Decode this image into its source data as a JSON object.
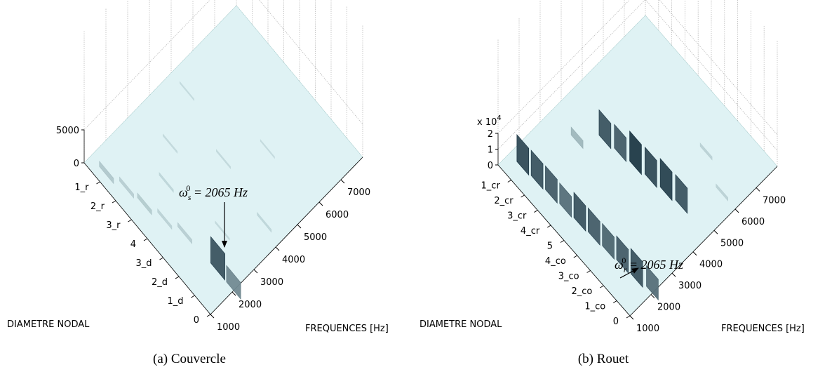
{
  "chart_data": [
    {
      "type": "waterfall3d",
      "caption": "(a) Couvercle",
      "xlabel": "FREQUENCES [Hz]",
      "ylabel": "DIAMETRE NODAL",
      "categories": [
        "0",
        "1_d",
        "2_d",
        "3_d",
        "4",
        "3_r",
        "2_r",
        "1_r",
        null
      ],
      "xlim": [
        1000,
        8000
      ],
      "xticks": [
        1000,
        2000,
        3000,
        4000,
        5000,
        6000,
        7000
      ],
      "zlim": [
        0,
        5000
      ],
      "zticks": [
        0,
        5000
      ],
      "annotation": {
        "symbol": "ω",
        "sub": "s",
        "sup": "0",
        "text": " = 2065 Hz"
      },
      "peak_diam": [
        7,
        6,
        5,
        7,
        4,
        6,
        3,
        5,
        2,
        4,
        3,
        1,
        1,
        0
      ],
      "peak_freq": [
        1300,
        1500,
        1600,
        5000,
        1800,
        3500,
        2000,
        2600,
        3000,
        4500,
        5800,
        4200,
        2065,
        2065
      ],
      "peak_height": [
        800,
        600,
        700,
        250,
        500,
        300,
        600,
        400,
        300,
        300,
        250,
        400,
        4000,
        2500
      ]
    },
    {
      "type": "waterfall3d",
      "caption": "(b) Rouet",
      "xlabel": "FREQUENCES [Hz]",
      "ylabel": "DIAMETRE NODAL",
      "categories": [
        "0",
        "1_co",
        "2_co",
        "3_co",
        "4_co",
        "5",
        "4_cr",
        "3_cr",
        "2_cr",
        "1_cr",
        null
      ],
      "xlim": [
        1000,
        8000
      ],
      "xticks": [
        1000,
        2000,
        3000,
        4000,
        5000,
        6000,
        7000
      ],
      "zlim": [
        0,
        2
      ],
      "zticks": [
        0,
        1,
        2
      ],
      "zmultiplier": {
        "base": "x 10",
        "exp": "4"
      },
      "annotation": {
        "symbol": "ω",
        "sub": "r",
        "sup": "0",
        "text": " = 2065 Hz"
      },
      "peak_diam": [
        9,
        8,
        8,
        7,
        7,
        6,
        6,
        5,
        5,
        4,
        4,
        3,
        3,
        2,
        2,
        1,
        1,
        0,
        3
      ],
      "peak_freq": [
        1550,
        1600,
        3500,
        1650,
        4200,
        1700,
        4300,
        1750,
        4400,
        1800,
        4500,
        1850,
        4600,
        1900,
        4700,
        1950,
        6000,
        2065,
        6500
      ],
      "peak_height": [
        1.7,
        1.6,
        0.5,
        1.5,
        1.6,
        1.3,
        1.5,
        1.6,
        1.9,
        1.5,
        1.7,
        1.4,
        1.8,
        1.5,
        1.6,
        1.6,
        0.2,
        1.3,
        0.2
      ]
    }
  ]
}
